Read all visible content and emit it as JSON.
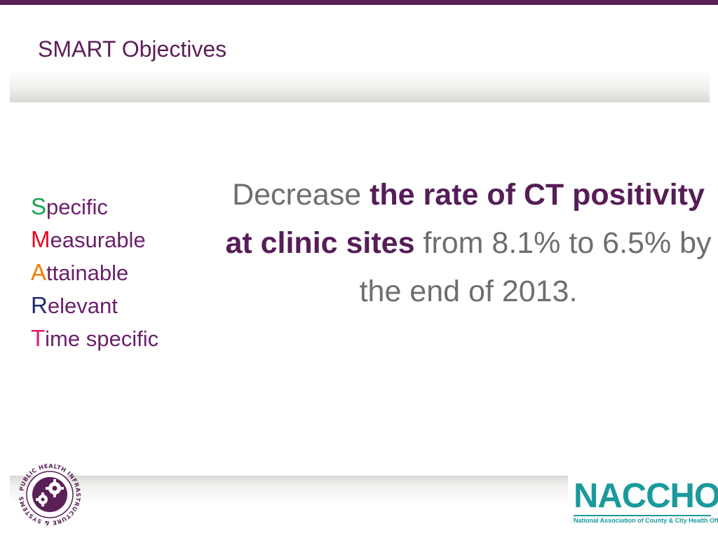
{
  "slide": {
    "title": "SMART Objectives"
  },
  "smart": {
    "items": [
      {
        "letter": "S",
        "rest": "pecific",
        "color": "#1aa14a"
      },
      {
        "letter": "M",
        "rest": "easurable",
        "color": "#e3081d"
      },
      {
        "letter": "A",
        "rest": "ttainable",
        "color": "#f07c00"
      },
      {
        "letter": "R",
        "rest": "elevant",
        "color": "#1f2f6e"
      },
      {
        "letter": "T",
        "rest": "ime specific",
        "color": "#e3186b"
      }
    ]
  },
  "objective": {
    "part1": "Decrease ",
    "bold": "the rate of CT positivity at clinic sites",
    "part2": " from 8.1% to 6.5% by the end of 2013."
  },
  "logos": {
    "phis_ring_text": "PUBLIC HEALTH INFRASTRUCTURE & SYSTEMS",
    "naccho_name": "NACCHO",
    "naccho_tagline": "National Association of County & City Health Officials"
  },
  "colors": {
    "brand_purple": "#5b1f58",
    "naccho_teal": "#1a9a9b"
  }
}
